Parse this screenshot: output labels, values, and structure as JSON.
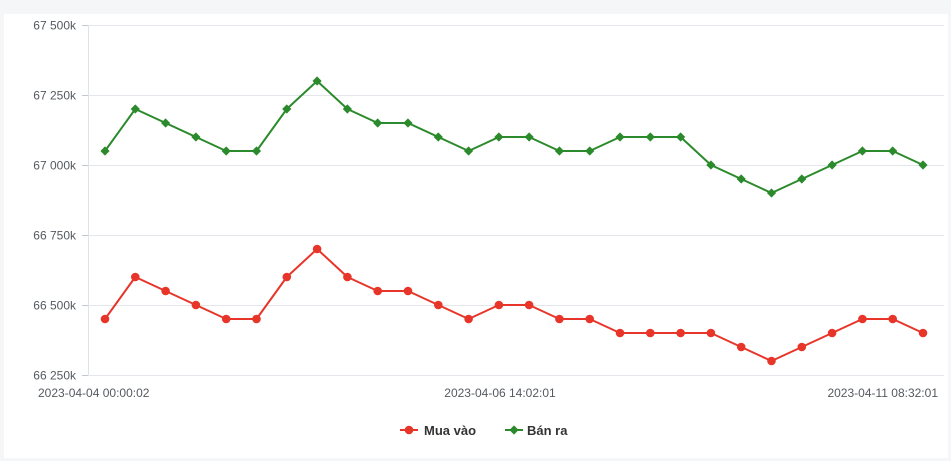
{
  "chart_data": {
    "type": "line",
    "x_ticks": [
      "2023-04-04 00:00:02",
      "2023-04-06 14:02:01",
      "2023-04-11 08:32:01"
    ],
    "y_ticks": [
      {
        "value": 66250,
        "label": "66 250k"
      },
      {
        "value": 66500,
        "label": "66 500k"
      },
      {
        "value": 66750,
        "label": "66 750k"
      },
      {
        "value": 67000,
        "label": "67 000k"
      },
      {
        "value": 67250,
        "label": "67 250k"
      },
      {
        "value": 67500,
        "label": "67 500k"
      }
    ],
    "ylim": [
      66250,
      67500
    ],
    "grid": true,
    "legend_position": "bottom-center",
    "series": [
      {
        "name": "Mua vào",
        "color": "#e8352a",
        "marker": "circle",
        "values": [
          66450,
          66600,
          66550,
          66500,
          66450,
          66450,
          66600,
          66700,
          66600,
          66550,
          66550,
          66500,
          66450,
          66500,
          66500,
          66450,
          66450,
          66400,
          66400,
          66400,
          66400,
          66350,
          66300,
          66350,
          66400,
          66450,
          66450,
          66400
        ]
      },
      {
        "name": "Bán ra",
        "color": "#2b8a2b",
        "marker": "diamond",
        "values": [
          67050,
          67200,
          67150,
          67100,
          67050,
          67050,
          67200,
          67300,
          67200,
          67150,
          67150,
          67100,
          67050,
          67100,
          67100,
          67050,
          67050,
          67100,
          67100,
          67100,
          67000,
          66950,
          66900,
          66950,
          67000,
          67050,
          67050,
          67000
        ]
      }
    ]
  }
}
